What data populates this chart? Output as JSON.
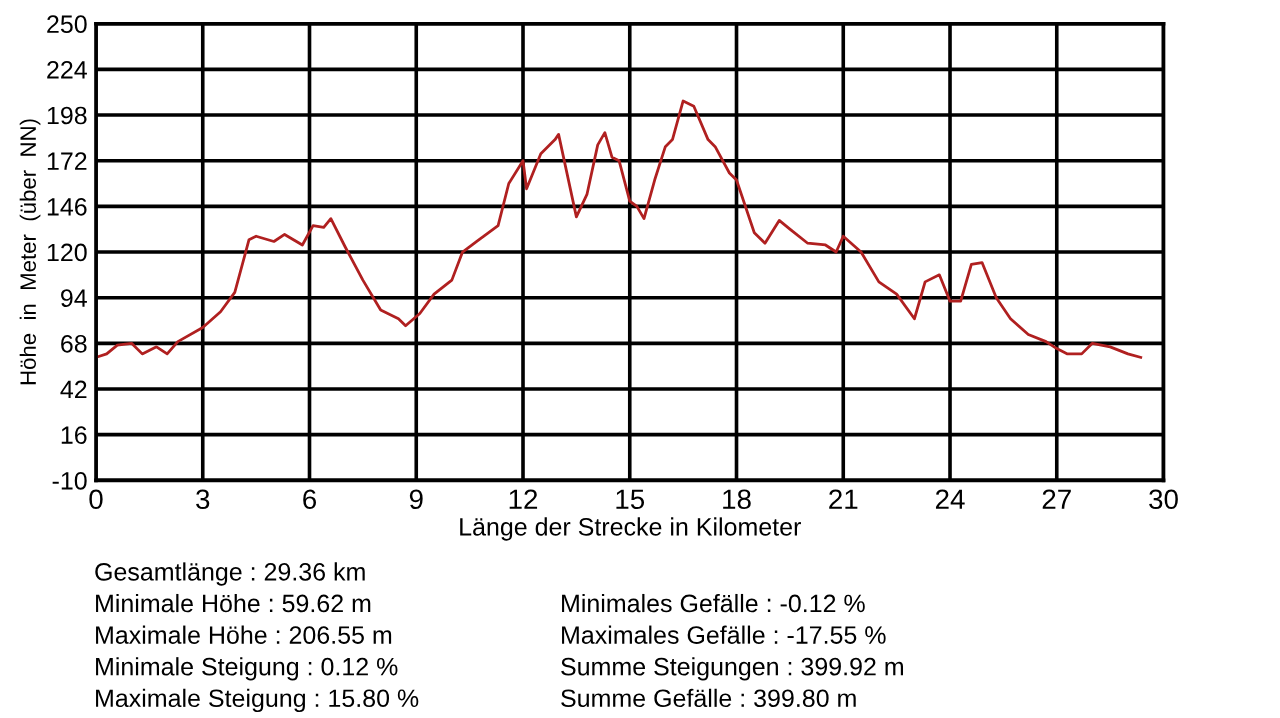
{
  "chart_data": {
    "type": "line",
    "xlabel": "Länge der Strecke in Kilometer",
    "ylabel": "Höhe  in  Meter  (über  NN)",
    "series": [
      {
        "color": "#b02020",
        "x": [
          0,
          0.3,
          0.6,
          1.0,
          1.3,
          1.7,
          2.0,
          2.3,
          3.0,
          3.5,
          3.9,
          4.3,
          4.5,
          5.0,
          5.3,
          5.8,
          6.1,
          6.4,
          6.6,
          7.0,
          7.5,
          8.0,
          8.5,
          8.7,
          9.1,
          9.5,
          10.0,
          10.3,
          10.7,
          11.3,
          11.6,
          12.0,
          12.1,
          12.5,
          12.9,
          13.0,
          13.5,
          13.8,
          14.1,
          14.3,
          14.5,
          14.7,
          15.0,
          15.2,
          15.4,
          15.7,
          16.0,
          16.2,
          16.5,
          16.8,
          17.2,
          17.4,
          17.8,
          18.0,
          18.5,
          18.8,
          19.2,
          19.5,
          20.0,
          20.5,
          20.8,
          21.0,
          21.5,
          22.0,
          22.5,
          23.0,
          23.3,
          23.7,
          24.0,
          24.3,
          24.6,
          24.9,
          25.3,
          25.7,
          26.2,
          26.7,
          27.0,
          27.3,
          27.7,
          28.0,
          28.5,
          29.0,
          29.36
        ],
        "values": [
          60,
          62,
          67,
          68,
          62,
          66,
          62,
          69,
          77,
          86,
          97,
          127,
          129,
          126,
          130,
          124,
          135,
          134,
          139,
          123,
          104,
          87,
          82,
          78,
          85,
          96,
          104,
          120,
          126,
          135,
          159,
          172,
          156,
          176,
          184,
          187,
          140,
          153,
          181,
          188,
          174,
          172,
          149,
          146,
          139,
          161,
          180,
          184,
          206,
          203,
          184,
          180,
          165,
          161,
          131,
          125,
          138,
          133,
          125,
          124,
          120,
          129,
          120,
          103,
          96,
          82,
          103,
          107,
          92,
          92,
          113,
          114,
          94,
          82,
          73,
          69,
          65,
          62,
          62,
          68,
          66,
          62,
          60
        ]
      }
    ],
    "xlim": [
      0,
      30
    ],
    "xticks": [
      0,
      3,
      6,
      9,
      12,
      15,
      18,
      21,
      24,
      27,
      30
    ],
    "ylim": [
      -10,
      250
    ],
    "yticks": [
      -10,
      16,
      42,
      68,
      94,
      120,
      146,
      172,
      198,
      224,
      250
    ],
    "grid": true,
    "marker": "none",
    "line_style": "solid",
    "annotations": [
      "Gesamtlänge : 29.36 km",
      "Minimale Höhe : 59.62 m",
      "Maximale Höhe : 206.55 m",
      "Minimale Steigung : 0.12 %",
      "Maximale Steigung : 15.80 %",
      "Minimales Gefälle : -0.12 %",
      "Maximales Gefälle : -17.55 %",
      "Summe Steigungen : 399.92 m",
      "Summe Gefälle : 399.80 m"
    ]
  }
}
